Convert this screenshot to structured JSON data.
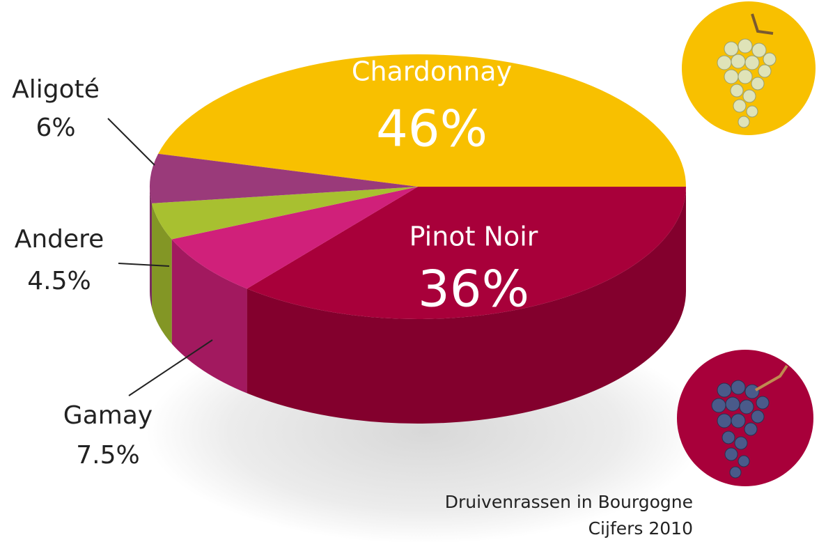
{
  "chart_data": {
    "type": "pie",
    "title": "Druivenrassen in Bourgogne",
    "subtitle": "Cijfers 2010",
    "categories": [
      "Chardonnay",
      "Pinot Noir",
      "Gamay",
      "Andere",
      "Aligoté"
    ],
    "values": [
      46,
      36,
      7.5,
      4.5,
      6
    ],
    "value_labels": [
      "46%",
      "36%",
      "7.5%",
      "4.5%",
      "6%"
    ],
    "colors": [
      "#f8c000",
      "#a8003a",
      "#d0207a",
      "#a8c030",
      "#9a3a7a"
    ]
  }
}
